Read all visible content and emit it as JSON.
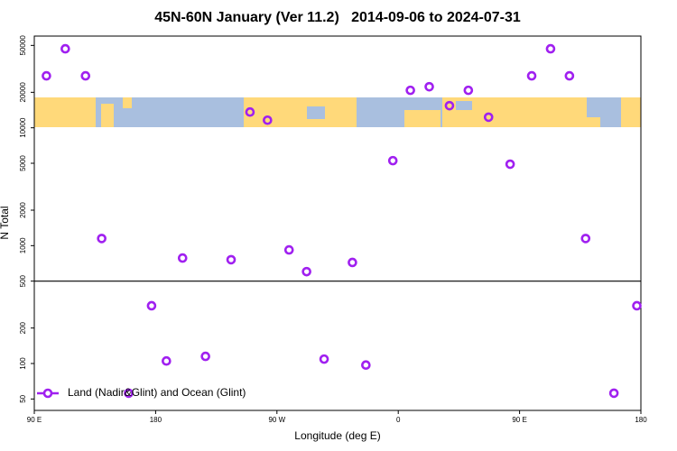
{
  "chart_data": {
    "type": "scatter",
    "title": "45N-60N January (Ver 11.2)   2014-09-06 to 2024-07-31",
    "x_label": "Longitude (deg E)",
    "y_label": "N Total",
    "y_scale": "log",
    "xlim": [
      -270,
      180
    ],
    "xticks": [
      {
        "value": -270,
        "label": "90 E"
      },
      {
        "value": -180,
        "label": "180"
      },
      {
        "value": -90,
        "label": "90 W"
      },
      0,
      {
        "value": 90,
        "label": "90 E"
      },
      180
    ],
    "ylim": [
      40,
      60000
    ],
    "yticks": [
      50,
      100,
      200,
      500,
      1000,
      2000,
      5000,
      10000,
      20000,
      50000
    ],
    "hline": 500,
    "legend": "bottom-left",
    "series": [
      {
        "name": "Land (Nadir&Glint) and Ocean (Glint)",
        "color": "#a020f0",
        "x": [
          -261,
          -247,
          -232,
          -220,
          -200,
          -183,
          -172,
          -160,
          -143,
          -124,
          -110,
          -97,
          -81,
          -68,
          -55,
          -34,
          -24,
          -4,
          9,
          23,
          38,
          52,
          67,
          83,
          99,
          113,
          127,
          139,
          160,
          177
        ],
        "values": [
          27600,
          46800,
          27600,
          1150,
          56,
          309,
          105,
          785,
          115,
          760,
          13600,
          11600,
          920,
          602,
          109,
          720,
          97,
          5260,
          20800,
          22300,
          15400,
          20800,
          12300,
          4910,
          27600,
          46800,
          27600,
          1150,
          56,
          309
        ]
      }
    ]
  }
}
